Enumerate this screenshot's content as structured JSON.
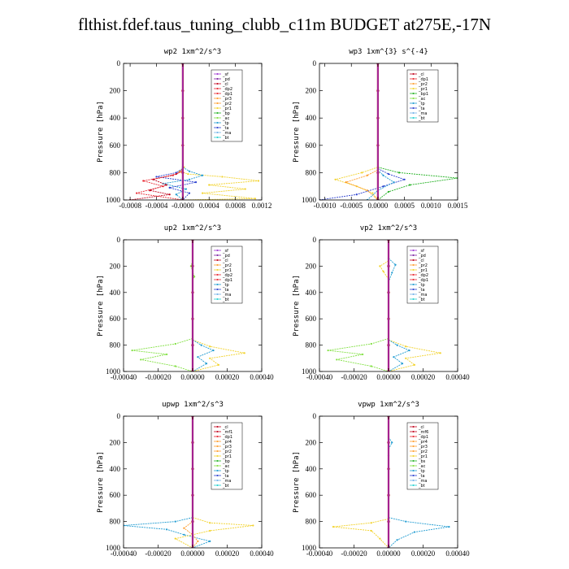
{
  "figure_title": "flthist.fdef.taus_tuning_clubb_c11m  BUDGET at275E,-17N",
  "colors": {
    "sf": "#9b30d0",
    "pd": "#7a1fa0",
    "cl": "#c0001a",
    "dp": "#e8242e",
    "pr2": "#ff9c2a",
    "pr1": "#f2d22a",
    "bp": "#20b020",
    "ac": "#80e040",
    "tp": "#1f9bd1",
    "ta": "#2a3fcf",
    "ma": "#6fb0e8",
    "bt": "#20d0d0",
    "thick": "#b01030",
    "axis": "#000000"
  },
  "chart_data": [
    {
      "id": "wp2",
      "type": "line",
      "title": "wp2  1xm^2/s^3",
      "ylabel": "Pressure [hPa]",
      "ylim": [
        1000,
        0
      ],
      "xlim": [
        -0.0009,
        0.0012
      ],
      "xticks": [
        -0.0008,
        -0.0004,
        0.0,
        0.0004,
        0.0008,
        0.0012
      ],
      "xtick_labels": [
        "-0.0008",
        "-0.0004",
        "-0.0000",
        "0.0004",
        "0.0008",
        "0.0012"
      ],
      "yticks": [
        0,
        200,
        400,
        600,
        800,
        1000
      ],
      "ytick_labels": [
        "0",
        "200",
        "400",
        "600",
        "800",
        "1000"
      ],
      "legend": [
        "_sf",
        "_pd",
        "_cl",
        "_dp2",
        "_dp1",
        "_pr3",
        "_pr2",
        "_pr1",
        "_bp",
        "_ac",
        "_tp",
        "_ta",
        "_ma",
        "_bt"
      ],
      "series": [
        {
          "color": "pr1",
          "x": [
            2e-05,
            -5e-05,
            8e-05,
            0.0006,
            0.00115,
            0.0004,
            0.00095,
            0.0003,
            0.0011,
            0.0
          ],
          "y": [
            760,
            790,
            810,
            830,
            860,
            890,
            920,
            950,
            990,
            1000
          ]
        },
        {
          "color": "tp",
          "x": [
            0.0,
            0.0001,
            0.0003,
            0.0001,
            -0.0003,
            5e-05,
            -0.0001,
            0.0
          ],
          "y": [
            760,
            790,
            820,
            850,
            880,
            920,
            960,
            1000
          ]
        },
        {
          "color": "ta",
          "x": [
            0.0,
            -0.0001,
            -0.0004,
            0.0002,
            -0.0002,
            0.0001,
            0.0
          ],
          "y": [
            770,
            800,
            830,
            870,
            910,
            950,
            1000
          ]
        },
        {
          "color": "cl",
          "x": [
            0.0,
            -0.0001,
            -0.00045,
            -0.00025,
            -0.0005,
            -0.0002,
            -0.0008
          ],
          "y": [
            780,
            810,
            850,
            890,
            930,
            960,
            1000
          ]
        },
        {
          "color": "dp",
          "x": [
            0.0,
            -0.00015,
            -0.0006,
            -0.0003,
            -0.0007,
            0.0
          ],
          "y": [
            790,
            820,
            860,
            900,
            950,
            1000
          ]
        },
        {
          "color": "thick",
          "x": [
            0.0,
            0.0,
            0.0,
            0.0,
            0.0,
            0.0
          ],
          "y": [
            0,
            200,
            400,
            600,
            800,
            1000
          ]
        }
      ]
    },
    {
      "id": "wp3",
      "type": "line",
      "title": "wp3  1xm^{3} s^{-4}",
      "ylabel": "Pressure [hPa]",
      "ylim": [
        1000,
        0
      ],
      "xlim": [
        -0.0011,
        0.0015
      ],
      "xticks": [
        -0.001,
        -0.0005,
        0.0,
        0.0005,
        0.001,
        0.0015
      ],
      "xtick_labels": [
        "-0.0010",
        "-0.0005",
        "0.0000",
        "0.0005",
        "0.0010",
        "0.0015"
      ],
      "yticks": [
        0,
        200,
        400,
        600,
        800,
        1000
      ],
      "ytick_labels": [
        "0",
        "200",
        "400",
        "600",
        "800",
        "1000"
      ],
      "legend": [
        "_cl",
        "_dp1",
        "_pr2",
        "_pr1",
        "_bp1",
        "_ac",
        "_tp",
        "_ta",
        "_ma",
        "_bt"
      ],
      "series": [
        {
          "color": "bp",
          "x": [
            0.0,
            0.0004,
            0.0015,
            0.0006,
            0.0002,
            0.0
          ],
          "y": [
            760,
            800,
            840,
            890,
            940,
            1000
          ]
        },
        {
          "color": "pr1",
          "x": [
            0.0,
            -0.0003,
            -0.0008,
            -0.0004,
            -0.0001,
            0.0
          ],
          "y": [
            760,
            800,
            850,
            900,
            950,
            1000
          ]
        },
        {
          "color": "pr2",
          "x": [
            0.0,
            -0.0002,
            -0.0006,
            -0.0002,
            0.0
          ],
          "y": [
            780,
            820,
            870,
            930,
            1000
          ]
        },
        {
          "color": "ta",
          "x": [
            0.0,
            0.0002,
            0.0005,
            0.0001,
            -0.0004,
            -0.0011
          ],
          "y": [
            770,
            810,
            850,
            900,
            960,
            1000
          ]
        },
        {
          "color": "tp",
          "x": [
            0.0,
            0.0001,
            0.0003,
            0.0,
            -0.0002
          ],
          "y": [
            780,
            820,
            870,
            930,
            1000
          ]
        },
        {
          "color": "thick",
          "x": [
            0.0,
            0.0,
            0.0,
            0.0,
            0.0,
            0.0
          ],
          "y": [
            0,
            200,
            400,
            600,
            800,
            1000
          ]
        }
      ]
    },
    {
      "id": "up2",
      "type": "line",
      "title": "up2  1xm^2/s^3",
      "ylabel": "Pressure [hPa]",
      "ylim": [
        1000,
        0
      ],
      "xlim": [
        -0.0004,
        0.0004
      ],
      "xticks": [
        -0.0004,
        -0.0002,
        0.0,
        0.0002,
        0.0004
      ],
      "xtick_labels": [
        "-0.00040",
        "-0.00020",
        "0.00000",
        "0.00020",
        "0.00040"
      ],
      "yticks": [
        0,
        200,
        400,
        600,
        800,
        1000
      ],
      "ytick_labels": [
        "0",
        "200",
        "400",
        "600",
        "800",
        "1000"
      ],
      "legend": [
        "_sf",
        "_pd",
        "_cl",
        "_pr2",
        "_pr1",
        "_dp2",
        "_dp1",
        "_tp",
        "_ta",
        "_ma",
        "_bt"
      ],
      "series": [
        {
          "color": "ac",
          "x": [
            0.0,
            -1e-05,
            0.0,
            1e-05,
            0.0
          ],
          "y": [
            160,
            200,
            240,
            280,
            300
          ]
        },
        {
          "color": "ac",
          "x": [
            0.0,
            -0.0001,
            -0.00035,
            -0.00015,
            -0.0003,
            -0.0001,
            0.0
          ],
          "y": [
            750,
            790,
            840,
            870,
            910,
            960,
            1000
          ]
        },
        {
          "color": "pr1",
          "x": [
            0.0,
            0.0001,
            0.0003,
            0.0001,
            0.00015,
            0.0
          ],
          "y": [
            760,
            810,
            860,
            900,
            950,
            1000
          ]
        },
        {
          "color": "tp",
          "x": [
            0.0,
            5e-05,
            0.00012,
            3e-05,
            8e-05,
            0.0
          ],
          "y": [
            760,
            800,
            840,
            890,
            940,
            1000
          ]
        },
        {
          "color": "thick",
          "x": [
            0.0,
            0.0,
            0.0,
            0.0,
            0.0,
            0.0
          ],
          "y": [
            0,
            200,
            400,
            600,
            800,
            1000
          ]
        }
      ]
    },
    {
      "id": "vp2",
      "type": "line",
      "title": "vp2  1xm^2/s^3",
      "ylabel": "Pressure [hPa]",
      "ylim": [
        1000,
        0
      ],
      "xlim": [
        -0.0004,
        0.0004
      ],
      "xticks": [
        -0.0004,
        -0.0002,
        0.0,
        0.0002,
        0.0004
      ],
      "xtick_labels": [
        "-0.00040",
        "-0.00020",
        "0.00000",
        "0.00020",
        "0.00040"
      ],
      "yticks": [
        0,
        200,
        400,
        600,
        800,
        1000
      ],
      "ytick_labels": [
        "0",
        "200",
        "400",
        "600",
        "800",
        "1000"
      ],
      "legend": [
        "_sf",
        "_pd",
        "_cl",
        "_pr2",
        "_pr1",
        "_dp2",
        "_dp1",
        "_tp",
        "_ta",
        "_ma",
        "_bt"
      ],
      "series": [
        {
          "color": "pr1",
          "x": [
            0.0,
            -5e-05,
            -3e-05,
            0.0
          ],
          "y": [
            160,
            200,
            240,
            300
          ]
        },
        {
          "color": "tp",
          "x": [
            0.0,
            4e-05,
            2e-05,
            0.0
          ],
          "y": [
            140,
            190,
            250,
            320
          ]
        },
        {
          "color": "ac",
          "x": [
            0.0,
            -0.0001,
            -0.00035,
            -0.00015,
            -0.0003,
            -0.0001,
            0.0
          ],
          "y": [
            750,
            790,
            840,
            870,
            910,
            960,
            1000
          ]
        },
        {
          "color": "pr1",
          "x": [
            0.0,
            0.0001,
            0.0003,
            0.0001,
            0.00015,
            0.0
          ],
          "y": [
            760,
            810,
            860,
            900,
            950,
            1000
          ]
        },
        {
          "color": "tp",
          "x": [
            0.0,
            5e-05,
            0.00012,
            3e-05,
            8e-05,
            0.0
          ],
          "y": [
            760,
            800,
            840,
            890,
            940,
            1000
          ]
        },
        {
          "color": "thick",
          "x": [
            0.0,
            0.0,
            0.0,
            0.0,
            0.0,
            0.0
          ],
          "y": [
            0,
            200,
            400,
            600,
            800,
            1000
          ]
        }
      ]
    },
    {
      "id": "upwp",
      "type": "line",
      "title": "upwp  1xm^2/s^3",
      "ylabel": "Pressure [hPa]",
      "ylim": [
        1000,
        0
      ],
      "xlim": [
        -0.0004,
        0.0004
      ],
      "xticks": [
        -0.0004,
        -0.0002,
        0.0,
        0.0002,
        0.0004
      ],
      "xtick_labels": [
        "-0.00040",
        "-0.00020",
        "0.00000",
        "0.00020",
        "0.00040"
      ],
      "yticks": [
        0,
        200,
        400,
        600,
        800,
        1000
      ],
      "ytick_labels": [
        "0",
        "200",
        "400",
        "600",
        "800",
        "1000"
      ],
      "legend": [
        "_cl",
        "_mf1",
        "_dp1",
        "_pr4",
        "_pr3",
        "_pr2",
        "_pr1",
        "_bp",
        "_ac",
        "_tp",
        "_ta",
        "_ma",
        "_bt"
      ],
      "series": [
        {
          "color": "tp",
          "x": [
            0.0,
            -0.0001,
            -0.0004,
            -0.00015,
            -5e-05,
            0.0001,
            0.0
          ],
          "y": [
            770,
            800,
            830,
            860,
            900,
            950,
            1000
          ]
        },
        {
          "color": "pr1",
          "x": [
            0.0,
            0.0001,
            0.00035,
            0.0001,
            -0.0001,
            0.0
          ],
          "y": [
            770,
            810,
            830,
            870,
            930,
            1000
          ]
        },
        {
          "color": "pr2",
          "x": [
            0.0,
            -5e-05,
            0.0,
            3e-05,
            0.0
          ],
          "y": [
            800,
            850,
            900,
            950,
            1000
          ]
        },
        {
          "color": "thick",
          "x": [
            0.0,
            0.0,
            0.0,
            0.0,
            0.0,
            0.0
          ],
          "y": [
            0,
            200,
            400,
            600,
            800,
            1000
          ]
        }
      ]
    },
    {
      "id": "vpwp",
      "type": "line",
      "title": "vpwp  1xm^2/s^3",
      "ylabel": "Pressure [hPa]",
      "ylim": [
        1000,
        0
      ],
      "xlim": [
        -0.0004,
        0.0004
      ],
      "xticks": [
        -0.0004,
        -0.0002,
        0.0,
        0.0002,
        0.0004
      ],
      "xtick_labels": [
        "-0.00040",
        "-0.00020",
        "0.00000",
        "0.00020",
        "0.00040"
      ],
      "yticks": [
        0,
        200,
        400,
        600,
        800,
        1000
      ],
      "ytick_labels": [
        "0",
        "200",
        "400",
        "600",
        "800",
        "1000"
      ],
      "legend": [
        "_cl",
        "_mf6",
        "_dp1",
        "_pr4",
        "_pr3",
        "_pr2",
        "_pr1",
        "_bs",
        "_ac",
        "_tp",
        "_ta",
        "_ma",
        "_bt"
      ],
      "series": [
        {
          "color": "tp",
          "x": [
            0.0,
            2e-05,
            0.0,
            0.0
          ],
          "y": [
            160,
            200,
            250,
            300
          ]
        },
        {
          "color": "pr1",
          "x": [
            0.0,
            -0.0001,
            -0.00032,
            -0.0001,
            -5e-05,
            0.0
          ],
          "y": [
            780,
            810,
            840,
            870,
            930,
            1000
          ]
        },
        {
          "color": "tp",
          "x": [
            0.0,
            0.0001,
            0.00035,
            0.00015,
            5e-05,
            0.0
          ],
          "y": [
            770,
            800,
            840,
            880,
            940,
            1000
          ]
        },
        {
          "color": "thick",
          "x": [
            0.0,
            0.0,
            0.0,
            0.0,
            0.0,
            0.0
          ],
          "y": [
            0,
            200,
            400,
            600,
            800,
            1000
          ]
        }
      ]
    }
  ]
}
